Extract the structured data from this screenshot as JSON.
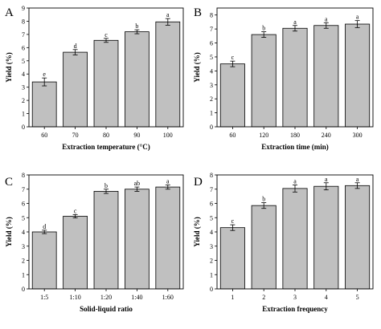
{
  "chart_data": [
    {
      "panel_label": "A",
      "type": "bar",
      "categories": [
        "60",
        "70",
        "80",
        "90",
        "100"
      ],
      "values": [
        3.4,
        5.65,
        6.55,
        7.2,
        7.95
      ],
      "errors": [
        0.3,
        0.2,
        0.15,
        0.15,
        0.25
      ],
      "letters": [
        "e",
        "d",
        "c",
        "b",
        "a"
      ],
      "xlabel": "Extraction temperature (°C)",
      "ylabel": "Yield (%)",
      "ylim": [
        0,
        9
      ],
      "yticks": [
        0,
        1,
        2,
        3,
        4,
        5,
        6,
        7,
        8,
        9
      ],
      "bar_color": "#c0c0c0"
    },
    {
      "panel_label": "B",
      "type": "bar",
      "categories": [
        "60",
        "120",
        "180",
        "240",
        "300"
      ],
      "values": [
        4.5,
        6.6,
        7.05,
        7.25,
        7.35
      ],
      "errors": [
        0.2,
        0.2,
        0.2,
        0.2,
        0.25
      ],
      "letters": [
        "c",
        "b",
        "a",
        "a",
        "a"
      ],
      "xlabel": "Extraction time (min)",
      "ylabel": "Yield (%)",
      "ylim": [
        0,
        8.5
      ],
      "yticks": [
        0,
        1,
        2,
        3,
        4,
        5,
        6,
        7,
        8
      ],
      "bar_color": "#c0c0c0"
    },
    {
      "panel_label": "C",
      "type": "bar",
      "categories": [
        "1:5",
        "1:10",
        "1:20",
        "1:40",
        "1:60"
      ],
      "values": [
        4.0,
        5.1,
        6.85,
        7.0,
        7.15
      ],
      "errors": [
        0.12,
        0.12,
        0.15,
        0.15,
        0.15
      ],
      "letters": [
        "d",
        "c",
        "b",
        "ab",
        "a"
      ],
      "xlabel": "Solid-liquid ratio",
      "ylabel": "Yield (%)",
      "ylim": [
        0,
        8
      ],
      "yticks": [
        0,
        1,
        2,
        3,
        4,
        5,
        6,
        7,
        8
      ],
      "bar_color": "#c0c0c0"
    },
    {
      "panel_label": "D",
      "type": "bar",
      "categories": [
        "1",
        "2",
        "3",
        "4",
        "5"
      ],
      "values": [
        4.3,
        5.85,
        7.05,
        7.2,
        7.25
      ],
      "errors": [
        0.2,
        0.2,
        0.25,
        0.25,
        0.2
      ],
      "letters": [
        "c",
        "b",
        "a",
        "a",
        "a"
      ],
      "xlabel": "Extraction frequency",
      "ylabel": "Yield (%)",
      "ylim": [
        0,
        8
      ],
      "yticks": [
        0,
        1,
        2,
        3,
        4,
        5,
        6,
        7,
        8
      ],
      "bar_color": "#c0c0c0"
    }
  ]
}
